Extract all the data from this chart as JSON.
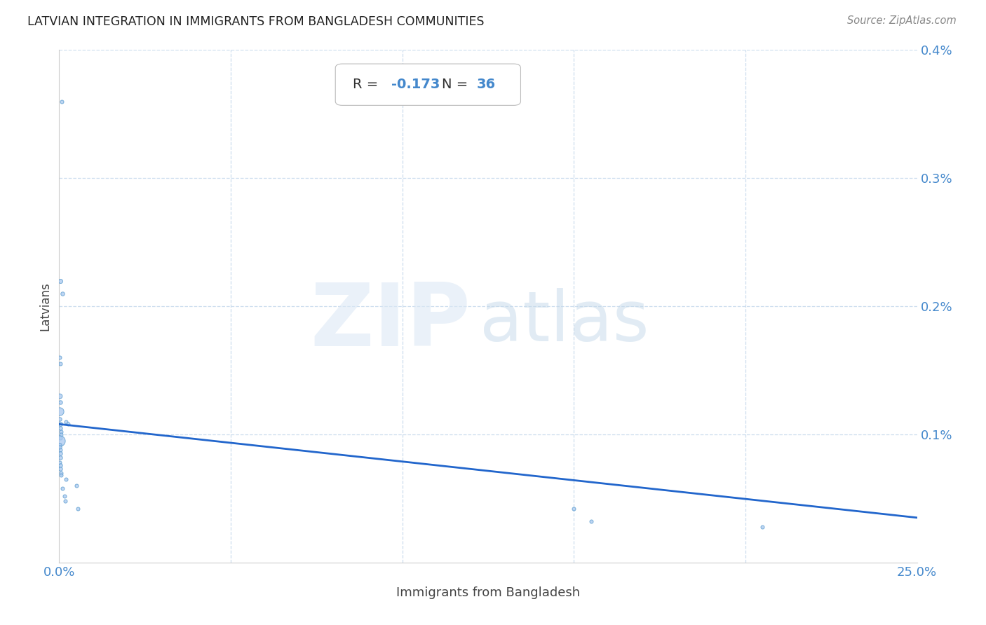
{
  "title": "LATVIAN INTEGRATION IN IMMIGRANTS FROM BANGLADESH COMMUNITIES",
  "source": "Source: ZipAtlas.com",
  "xlabel": "Immigrants from Bangladesh",
  "ylabel": "Latvians",
  "R": -0.173,
  "N": 36,
  "xlim": [
    0,
    0.25
  ],
  "ylim": [
    0,
    0.004
  ],
  "xticks": [
    0.0,
    0.05,
    0.1,
    0.15,
    0.2,
    0.25
  ],
  "yticks": [
    0.0,
    0.001,
    0.002,
    0.003,
    0.004
  ],
  "xtick_labels": [
    "0.0%",
    "",
    "",
    "",
    "",
    "25.0%"
  ],
  "ytick_labels": [
    "",
    "0.1%",
    "0.2%",
    "0.3%",
    "0.4%"
  ],
  "scatter_color": "#a8c8f0",
  "scatter_edge_color": "#5599cc",
  "line_color": "#2266cc",
  "points": [
    [
      0.0008,
      0.0036,
      110
    ],
    [
      0.0003,
      0.0022,
      160
    ],
    [
      0.001,
      0.0021,
      130
    ],
    [
      0.0002,
      0.0016,
      110
    ],
    [
      0.0004,
      0.00155,
      110
    ],
    [
      0.0001,
      0.0013,
      200
    ],
    [
      0.0003,
      0.00125,
      130
    ],
    [
      0.0002,
      0.00118,
      550
    ],
    [
      0.0001,
      0.00112,
      130
    ],
    [
      0.0003,
      0.00108,
      150
    ],
    [
      0.0004,
      0.00105,
      130
    ],
    [
      0.0005,
      0.00102,
      110
    ],
    [
      0.0006,
      0.001,
      110
    ],
    [
      0.0003,
      0.00097,
      110
    ],
    [
      0.0001,
      0.00095,
      1000
    ],
    [
      0.0002,
      0.00092,
      130
    ],
    [
      0.0002,
      0.0009,
      130
    ],
    [
      0.0004,
      0.00088,
      110
    ],
    [
      0.0003,
      0.00085,
      130
    ],
    [
      0.0004,
      0.00082,
      130
    ],
    [
      0.0001,
      0.00078,
      110
    ],
    [
      0.0003,
      0.00076,
      130
    ],
    [
      0.0004,
      0.00073,
      130
    ],
    [
      0.0005,
      0.0007,
      110
    ],
    [
      0.0006,
      0.00068,
      110
    ],
    [
      0.002,
      0.0011,
      110
    ],
    [
      0.0025,
      0.00108,
      110
    ],
    [
      0.002,
      0.00065,
      110
    ],
    [
      0.001,
      0.00058,
      110
    ],
    [
      0.005,
      0.0006,
      110
    ],
    [
      0.0015,
      0.00052,
      110
    ],
    [
      0.0018,
      0.00048,
      110
    ],
    [
      0.0055,
      0.00042,
      110
    ],
    [
      0.15,
      0.00042,
      110
    ],
    [
      0.155,
      0.00032,
      110
    ],
    [
      0.205,
      0.00028,
      110
    ]
  ],
  "line_x": [
    0.0,
    0.25
  ],
  "line_y_start": 0.00108,
  "line_y_end": 0.00035
}
